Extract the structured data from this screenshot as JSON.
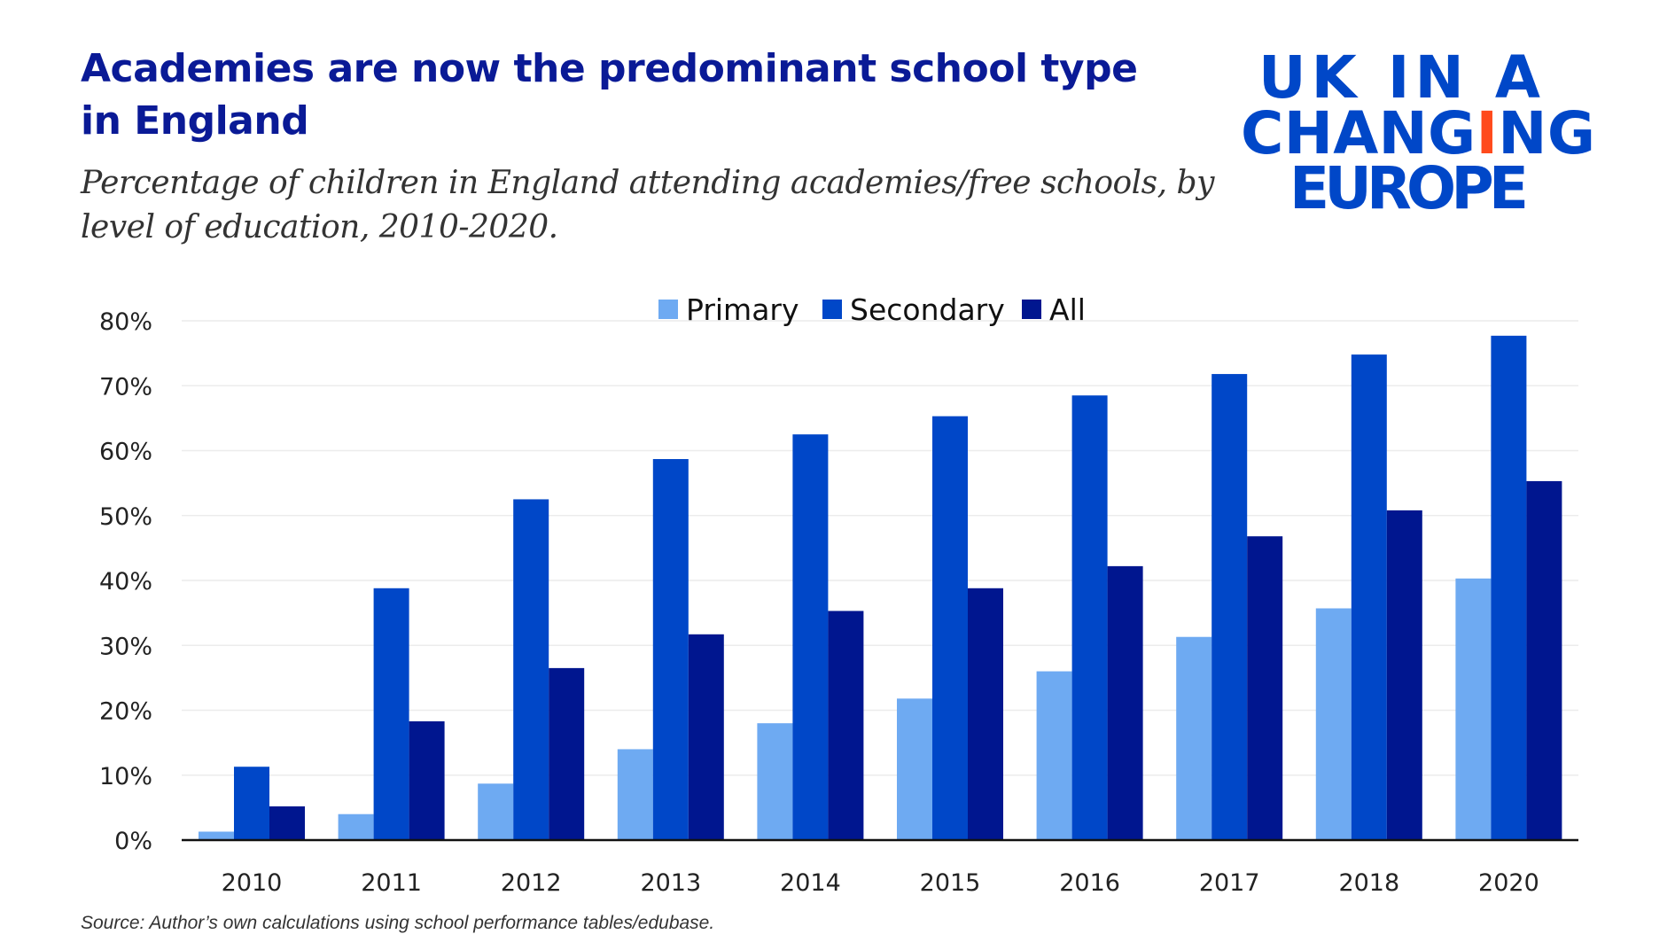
{
  "title": "Academies are now the predominant school type in England",
  "subtitle": "Percentage of children in England attending academies/free schools, by level of education, 2010-2020.",
  "source": "Source: Author’s own calculations using school performance tables/edubase.",
  "logo": {
    "lines": [
      "UK IN A",
      "CHANGING",
      "EUROPE"
    ],
    "colors": {
      "blue": "#0047c8",
      "red": "#ff4a1c"
    }
  },
  "chart_data": {
    "type": "bar",
    "title": "Academies are now the predominant school type in England",
    "xlabel": "",
    "ylabel": "",
    "categories": [
      "2010",
      "2011",
      "2012",
      "2013",
      "2014",
      "2015",
      "2016",
      "2017",
      "2018",
      "2020"
    ],
    "series": [
      {
        "name": "Primary",
        "color": "#6eaaf2",
        "values": [
          1.3,
          4.0,
          8.7,
          14.0,
          18.0,
          21.8,
          26.0,
          31.3,
          35.7,
          40.3
        ]
      },
      {
        "name": "Secondary",
        "color": "#0047c8",
        "values": [
          11.3,
          38.8,
          52.5,
          58.7,
          62.5,
          65.3,
          68.5,
          71.8,
          74.8,
          77.7
        ]
      },
      {
        "name": "All",
        "color": "#00168f",
        "values": [
          5.2,
          18.3,
          26.5,
          31.7,
          35.3,
          38.8,
          42.2,
          46.8,
          50.8,
          55.3
        ]
      }
    ],
    "ylim": [
      0,
      80
    ],
    "yticks": [
      "0%",
      "10%",
      "20%",
      "30%",
      "40%",
      "50%",
      "60%",
      "70%",
      "80%"
    ],
    "grid": true,
    "legend_position": "top-center"
  }
}
